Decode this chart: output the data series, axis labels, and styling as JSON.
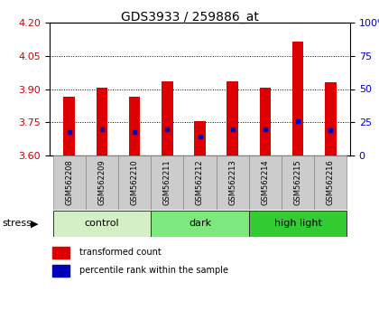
{
  "title": "GDS3933 / 259886_at",
  "samples": [
    "GSM562208",
    "GSM562209",
    "GSM562210",
    "GSM562211",
    "GSM562212",
    "GSM562213",
    "GSM562214",
    "GSM562215",
    "GSM562216"
  ],
  "red_values": [
    3.865,
    3.905,
    3.865,
    3.935,
    3.755,
    3.935,
    3.905,
    4.115,
    3.93
  ],
  "blue_values": [
    18,
    20,
    18,
    20,
    14,
    20,
    20,
    26,
    19
  ],
  "y_min": 3.6,
  "y_max": 4.2,
  "y_ticks": [
    3.6,
    3.75,
    3.9,
    4.05,
    4.2
  ],
  "right_y_ticks": [
    0,
    25,
    50,
    75,
    100
  ],
  "groups": [
    {
      "label": "control",
      "start": 0,
      "end": 3,
      "color": "#d4efc4"
    },
    {
      "label": "dark",
      "start": 3,
      "end": 6,
      "color": "#7de87d"
    },
    {
      "label": "high light",
      "start": 6,
      "end": 9,
      "color": "#33cc33"
    }
  ],
  "bar_color": "#dd0000",
  "dot_color": "#0000bb",
  "axis_color_left": "#cc0000",
  "axis_color_right": "#0000cc",
  "sample_box_color": "#cccccc",
  "title_fontsize": 10,
  "ytick_fontsize": 8,
  "sample_fontsize": 6,
  "group_fontsize": 8,
  "legend_fontsize": 7,
  "stress_fontsize": 8
}
